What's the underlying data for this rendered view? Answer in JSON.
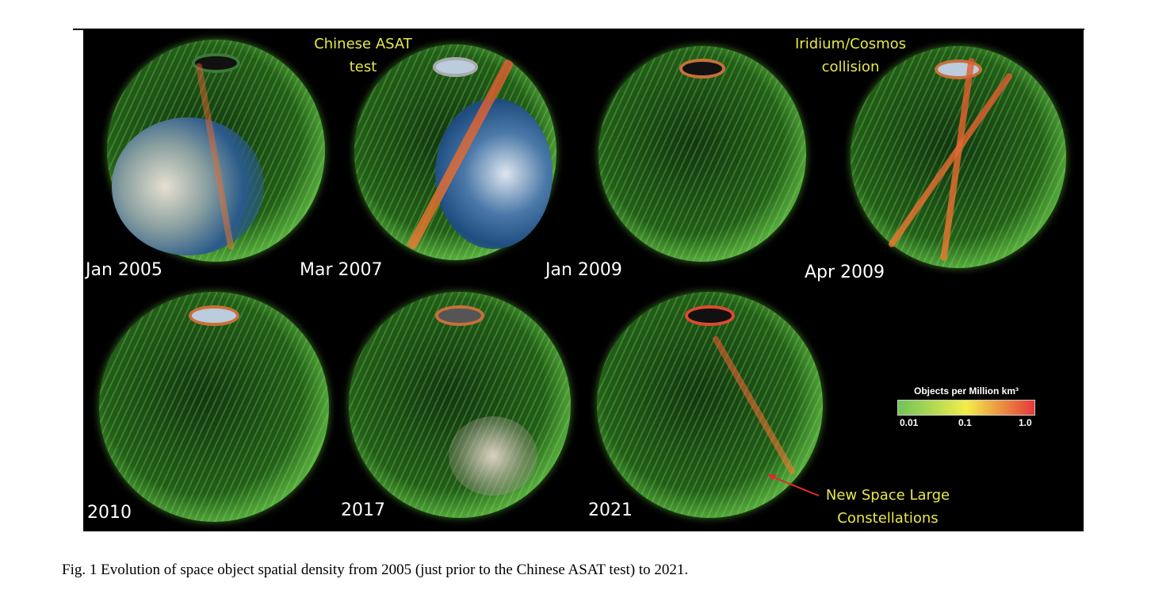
{
  "figure": {
    "panels": [
      {
        "label": "Jan 2005"
      },
      {
        "label": "Mar 2007"
      },
      {
        "label": "Jan 2009"
      },
      {
        "label": "Apr 2009"
      },
      {
        "label": "2010"
      },
      {
        "label": "2017"
      },
      {
        "label": "2021"
      }
    ],
    "annotations": {
      "asat_line1": "Chinese ASAT",
      "asat_line2": "test",
      "iridium_line1": "Iridium/Cosmos",
      "iridium_line2": "collision",
      "newspace_line1": "New Space Large",
      "newspace_line2": "Constellations"
    },
    "legend": {
      "title": "Objects per Million km³",
      "ticks": [
        "0.01",
        "0.1",
        "1.0"
      ],
      "colors": [
        "#6fc35a",
        "#f3ee4a",
        "#e4383a"
      ]
    }
  },
  "caption": "Fig. 1 Evolution of space object spatial density from 2005 (just prior to the Chinese ASAT test) to 2021."
}
